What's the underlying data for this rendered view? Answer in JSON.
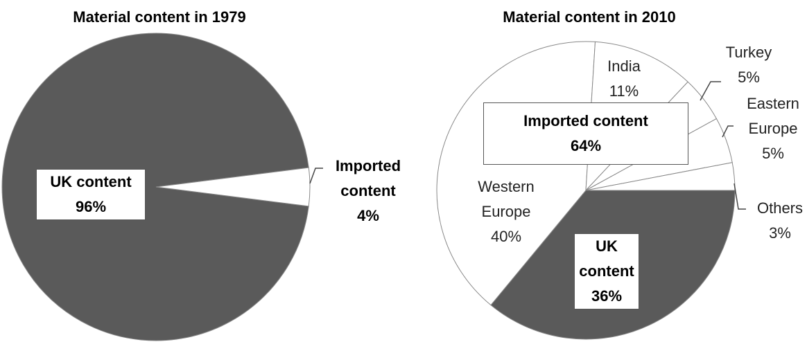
{
  "chart_data": [
    {
      "type": "pie",
      "title": "Material content in 1979",
      "categories": [
        "UK content",
        "Imported content"
      ],
      "values": [
        96,
        4
      ],
      "value_labels": [
        "96%",
        "4%"
      ],
      "colors": [
        "#5a5a5a",
        "#ffffff"
      ]
    },
    {
      "type": "pie",
      "title": "Material content in 2010",
      "categories": [
        "UK content",
        "Western Europe",
        "India",
        "Turkey",
        "Eastern Europe",
        "Others"
      ],
      "values": [
        36,
        40,
        11,
        5,
        5,
        3
      ],
      "value_labels": [
        "36%",
        "40%",
        "11%",
        "5%",
        "5%",
        "3%"
      ],
      "colors": [
        "#5a5a5a",
        "#ffffff",
        "#ffffff",
        "#ffffff",
        "#ffffff",
        "#ffffff"
      ],
      "annotation": {
        "text": "Imported content",
        "value": 64,
        "value_label": "64%"
      }
    }
  ]
}
